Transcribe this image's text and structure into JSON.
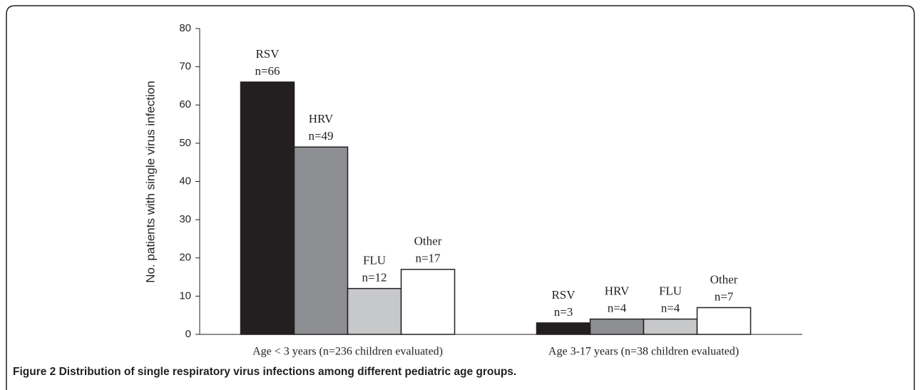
{
  "chart_data": {
    "type": "bar",
    "y_label": "No. patients with single virus infection",
    "categories": [
      "Age < 3 years (n=236 children evaluated)",
      "Age 3-17 years (n=38 children evaluated)"
    ],
    "series": [
      {
        "name": "RSV",
        "color": "#231f20",
        "values": [
          66,
          3
        ],
        "value_labels": [
          "n=66",
          "n=3"
        ]
      },
      {
        "name": "HRV",
        "color": "#8e8f92",
        "values": [
          49,
          4
        ],
        "value_labels": [
          "n=49",
          "n=4"
        ]
      },
      {
        "name": "FLU",
        "color": "#c7c8ca",
        "values": [
          12,
          4
        ],
        "value_labels": [
          "n=12",
          "n=4"
        ]
      },
      {
        "name": "Other",
        "color": "#ffffff",
        "values": [
          17,
          7
        ],
        "value_labels": [
          "n=17",
          "n=7"
        ]
      }
    ],
    "ylim": [
      0,
      80
    ],
    "yticks": [
      0,
      10,
      20,
      30,
      40,
      50,
      60,
      70,
      80
    ]
  },
  "caption": "Figure 2 Distribution of single respiratory virus infections among different pediatric age groups."
}
